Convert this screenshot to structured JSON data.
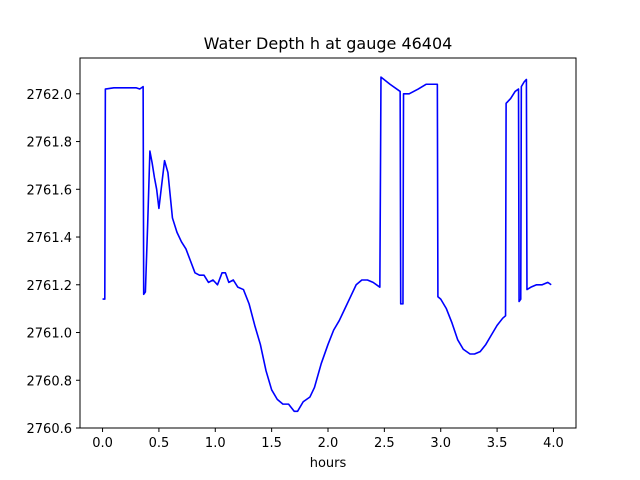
{
  "chart_data": {
    "type": "line",
    "title": "Water Depth h at gauge 46404",
    "xlabel": "hours",
    "ylabel": "",
    "xlim": [
      -0.2,
      4.2
    ],
    "ylim": [
      2760.6,
      2762.15
    ],
    "xticks": [
      0.0,
      0.5,
      1.0,
      1.5,
      2.0,
      2.5,
      3.0,
      3.5,
      4.0
    ],
    "xtick_labels": [
      "0.0",
      "0.5",
      "1.0",
      "1.5",
      "2.0",
      "2.5",
      "3.0",
      "3.5",
      "4.0"
    ],
    "yticks": [
      2760.6,
      2760.8,
      2761.0,
      2761.2,
      2761.4,
      2761.6,
      2761.8,
      2762.0
    ],
    "ytick_labels": [
      "2760.6",
      "2760.8",
      "2761.0",
      "2761.2",
      "2761.4",
      "2761.6",
      "2761.8",
      "2762.0"
    ],
    "grid": false,
    "series": [
      {
        "color": "#0000ff",
        "points": [
          [
            0.0,
            2761.14
          ],
          [
            0.02,
            2761.14
          ],
          [
            0.025,
            2762.02
          ],
          [
            0.1,
            2762.025
          ],
          [
            0.2,
            2762.025
          ],
          [
            0.3,
            2762.025
          ],
          [
            0.33,
            2762.02
          ],
          [
            0.36,
            2762.03
          ],
          [
            0.365,
            2761.16
          ],
          [
            0.38,
            2761.17
          ],
          [
            0.4,
            2761.45
          ],
          [
            0.42,
            2761.76
          ],
          [
            0.44,
            2761.71
          ],
          [
            0.46,
            2761.65
          ],
          [
            0.48,
            2761.6
          ],
          [
            0.5,
            2761.52
          ],
          [
            0.52,
            2761.6
          ],
          [
            0.55,
            2761.72
          ],
          [
            0.58,
            2761.67
          ],
          [
            0.62,
            2761.48
          ],
          [
            0.66,
            2761.42
          ],
          [
            0.7,
            2761.38
          ],
          [
            0.74,
            2761.35
          ],
          [
            0.78,
            2761.3
          ],
          [
            0.82,
            2761.25
          ],
          [
            0.86,
            2761.24
          ],
          [
            0.9,
            2761.24
          ],
          [
            0.94,
            2761.21
          ],
          [
            0.98,
            2761.22
          ],
          [
            1.02,
            2761.2
          ],
          [
            1.06,
            2761.25
          ],
          [
            1.09,
            2761.25
          ],
          [
            1.12,
            2761.21
          ],
          [
            1.16,
            2761.22
          ],
          [
            1.2,
            2761.19
          ],
          [
            1.25,
            2761.18
          ],
          [
            1.3,
            2761.12
          ],
          [
            1.35,
            2761.03
          ],
          [
            1.4,
            2760.95
          ],
          [
            1.45,
            2760.84
          ],
          [
            1.5,
            2760.76
          ],
          [
            1.55,
            2760.72
          ],
          [
            1.6,
            2760.7
          ],
          [
            1.65,
            2760.7
          ],
          [
            1.7,
            2760.67
          ],
          [
            1.73,
            2760.67
          ],
          [
            1.78,
            2760.71
          ],
          [
            1.84,
            2760.73
          ],
          [
            1.88,
            2760.77
          ],
          [
            1.94,
            2760.87
          ],
          [
            2.0,
            2760.95
          ],
          [
            2.05,
            2761.01
          ],
          [
            2.1,
            2761.05
          ],
          [
            2.15,
            2761.1
          ],
          [
            2.2,
            2761.15
          ],
          [
            2.25,
            2761.2
          ],
          [
            2.3,
            2761.22
          ],
          [
            2.35,
            2761.22
          ],
          [
            2.4,
            2761.21
          ],
          [
            2.46,
            2761.19
          ],
          [
            2.47,
            2762.07
          ],
          [
            2.55,
            2762.04
          ],
          [
            2.64,
            2762.01
          ],
          [
            2.645,
            2761.12
          ],
          [
            2.665,
            2761.12
          ],
          [
            2.67,
            2762.0
          ],
          [
            2.72,
            2762.0
          ],
          [
            2.8,
            2762.02
          ],
          [
            2.87,
            2762.04
          ],
          [
            2.95,
            2762.04
          ],
          [
            2.97,
            2762.04
          ],
          [
            2.975,
            2761.15
          ],
          [
            3.0,
            2761.14
          ],
          [
            3.05,
            2761.1
          ],
          [
            3.1,
            2761.04
          ],
          [
            3.15,
            2760.97
          ],
          [
            3.2,
            2760.93
          ],
          [
            3.26,
            2760.91
          ],
          [
            3.3,
            2760.91
          ],
          [
            3.35,
            2760.92
          ],
          [
            3.4,
            2760.95
          ],
          [
            3.45,
            2760.99
          ],
          [
            3.5,
            2761.03
          ],
          [
            3.55,
            2761.06
          ],
          [
            3.575,
            2761.07
          ],
          [
            3.58,
            2761.96
          ],
          [
            3.62,
            2761.98
          ],
          [
            3.66,
            2762.01
          ],
          [
            3.69,
            2762.02
          ],
          [
            3.695,
            2761.13
          ],
          [
            3.71,
            2761.14
          ],
          [
            3.715,
            2762.03
          ],
          [
            3.74,
            2762.05
          ],
          [
            3.76,
            2762.06
          ],
          [
            3.765,
            2761.18
          ],
          [
            3.8,
            2761.19
          ],
          [
            3.85,
            2761.2
          ],
          [
            3.9,
            2761.2
          ],
          [
            3.95,
            2761.21
          ],
          [
            3.98,
            2761.2
          ]
        ]
      }
    ]
  }
}
